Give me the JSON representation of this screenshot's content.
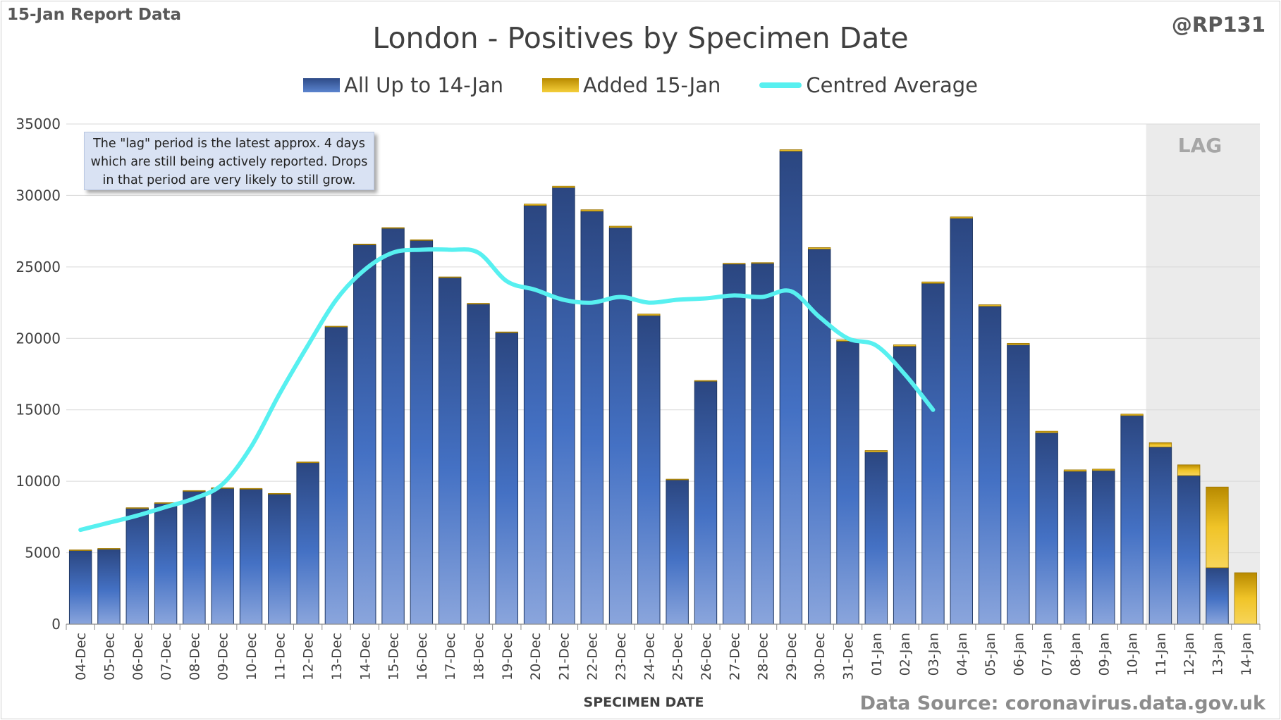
{
  "header": {
    "report_label": "15-Jan Report Data",
    "handle": "@RP131",
    "source": "Data Source: coronavirus.data.gov.uk"
  },
  "note": "The \"lag\" period is the latest approx. 4 days which are still being actively reported. Drops in that period are very likely to still grow.",
  "lag_label": "LAG",
  "chart_data": {
    "type": "bar",
    "title": "London - Positives by Specimen Date",
    "xlabel": "SPECIMEN DATE",
    "ylabel": "",
    "ylim": [
      0,
      35000
    ],
    "yticks": [
      0,
      5000,
      10000,
      15000,
      20000,
      25000,
      30000,
      35000
    ],
    "grid": true,
    "legend_position": "top",
    "stacked": true,
    "categories": [
      "04-Dec",
      "05-Dec",
      "06-Dec",
      "07-Dec",
      "08-Dec",
      "09-Dec",
      "10-Dec",
      "11-Dec",
      "12-Dec",
      "13-Dec",
      "14-Dec",
      "15-Dec",
      "16-Dec",
      "17-Dec",
      "18-Dec",
      "19-Dec",
      "20-Dec",
      "21-Dec",
      "22-Dec",
      "23-Dec",
      "24-Dec",
      "25-Dec",
      "26-Dec",
      "27-Dec",
      "28-Dec",
      "29-Dec",
      "30-Dec",
      "31-Dec",
      "01-Jan",
      "02-Jan",
      "03-Jan",
      "04-Jan",
      "05-Jan",
      "06-Jan",
      "07-Jan",
      "08-Jan",
      "09-Jan",
      "10-Jan",
      "11-Jan",
      "12-Jan",
      "13-Jan",
      "14-Jan"
    ],
    "series": [
      {
        "name": "All Up to 14-Jan",
        "color": "#3c64b1",
        "values": [
          5150,
          5250,
          8100,
          8450,
          9300,
          9500,
          9450,
          9100,
          11300,
          20800,
          26550,
          27700,
          26850,
          24250,
          22400,
          20400,
          29300,
          30550,
          28900,
          27750,
          21600,
          10100,
          17000,
          25200,
          25250,
          33100,
          26250,
          19800,
          12050,
          19450,
          23850,
          28400,
          22250,
          19550,
          13400,
          10700,
          10750,
          14600,
          12400,
          10400,
          3950,
          0
        ]
      },
      {
        "name": "Added 15-Jan",
        "color": "#e8b81d",
        "values": [
          50,
          50,
          50,
          50,
          50,
          50,
          50,
          50,
          50,
          50,
          50,
          50,
          50,
          50,
          50,
          50,
          100,
          100,
          100,
          100,
          100,
          50,
          50,
          50,
          50,
          100,
          100,
          100,
          100,
          100,
          100,
          100,
          100,
          100,
          100,
          100,
          100,
          100,
          300,
          750,
          5650,
          3600
        ]
      },
      {
        "name": "Centred Average",
        "type": "line",
        "color": "#57f0f0",
        "values": [
          6600,
          7100,
          7600,
          8200,
          8800,
          9800,
          12400,
          16100,
          19500,
          22700,
          24800,
          26000,
          26200,
          26200,
          26000,
          24000,
          23400,
          22700,
          22500,
          22900,
          22500,
          22700,
          22800,
          23000,
          22900,
          23300,
          21500,
          20000,
          19500,
          17500,
          15000,
          null,
          null,
          null,
          null,
          null,
          null,
          null,
          null,
          null,
          null,
          null
        ]
      }
    ],
    "lag_categories": [
      "11-Jan",
      "12-Jan",
      "13-Jan",
      "14-Jan"
    ]
  }
}
